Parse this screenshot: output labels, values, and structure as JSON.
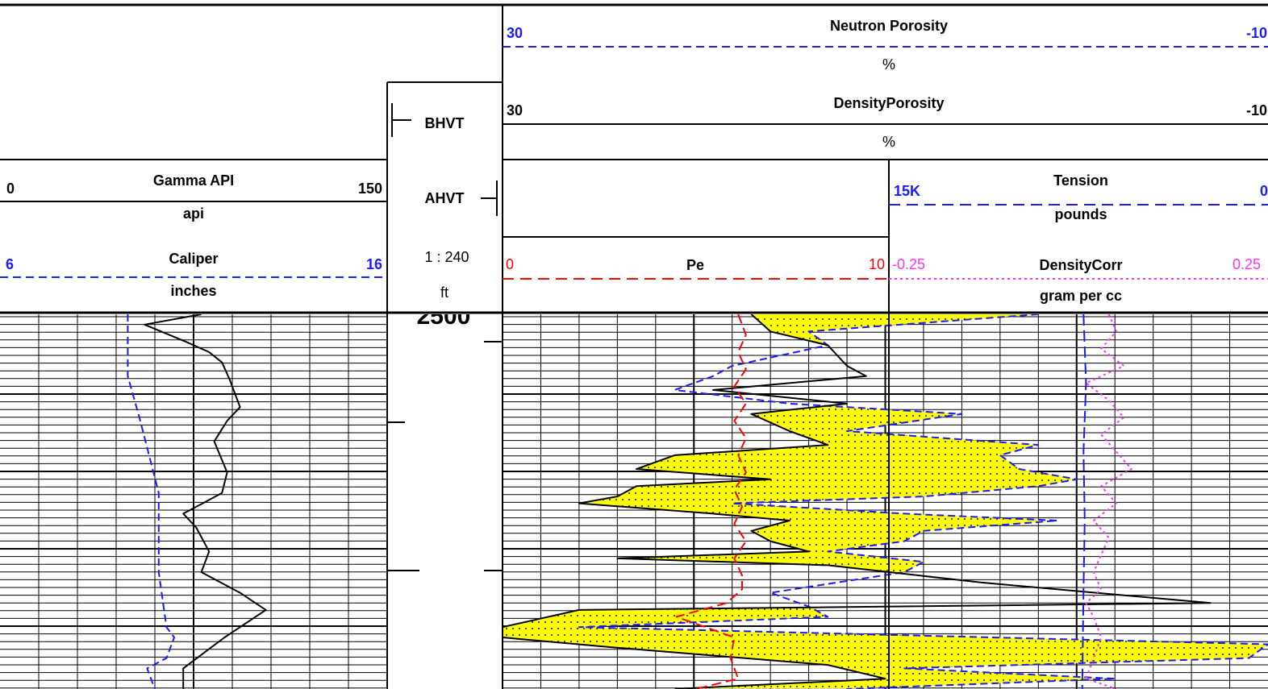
{
  "chart_data": {
    "type": "line",
    "title": "",
    "depth_axis": {
      "label_start": "2500",
      "scale": "1 : 240",
      "unit": "ft",
      "grid": true
    },
    "header": {
      "gamma": {
        "name": "Gamma API",
        "unit": "api",
        "min": "0",
        "max": "150",
        "color": "#000000"
      },
      "caliper": {
        "name": "Caliper",
        "unit": "inches",
        "min": "6",
        "max": "16",
        "color": "#1a1aff"
      },
      "bhvt": "BHVT",
      "ahvt": "AHVT",
      "neutron": {
        "name": "Neutron Porosity",
        "unit": "%",
        "min": "30",
        "max": "-10",
        "color": "#1a1aff"
      },
      "density_porosity": {
        "name": "DensityPorosity",
        "unit": "%",
        "min": "30",
        "max": "-10",
        "color": "#000000"
      },
      "tension": {
        "name": "Tension",
        "unit": "pounds",
        "min": "15K",
        "max": "0",
        "color": "#1a1aff"
      },
      "pe": {
        "name": "Pe",
        "min": "0",
        "max": "10",
        "color": "#ff0000"
      },
      "density_corr": {
        "name": "DensityCorr",
        "unit": "gram per cc",
        "min": "-0.25",
        "max": "0.25",
        "color": "#ff33ff"
      }
    },
    "crossover_fill_color": "#ffff00",
    "series": [
      {
        "key": "gamma",
        "values": [
          [
            0,
            78
          ],
          [
            15,
            56
          ],
          [
            40,
            72
          ],
          [
            55,
            81
          ],
          [
            70,
            86
          ],
          [
            95,
            89
          ],
          [
            135,
            93
          ],
          [
            155,
            88
          ],
          [
            185,
            83
          ],
          [
            230,
            88
          ],
          [
            260,
            86
          ],
          [
            290,
            71
          ],
          [
            310,
            76
          ],
          [
            345,
            81
          ],
          [
            375,
            78
          ],
          [
            405,
            93
          ],
          [
            430,
            103
          ],
          [
            470,
            87
          ],
          [
            515,
            71
          ],
          [
            545,
            71
          ]
        ]
      },
      {
        "key": "caliper",
        "values": [
          [
            0,
            9.3
          ],
          [
            90,
            9.3
          ],
          [
            150,
            9.6
          ],
          [
            260,
            10.1
          ],
          [
            375,
            10.1
          ],
          [
            455,
            10.3
          ],
          [
            470,
            10.5
          ],
          [
            500,
            10.3
          ],
          [
            515,
            9.8
          ],
          [
            545,
            10.0
          ]
        ]
      },
      {
        "key": "neutron",
        "values": [
          [
            0,
            2
          ],
          [
            25,
            14
          ],
          [
            45,
            13
          ],
          [
            75,
            18
          ],
          [
            90,
            19
          ],
          [
            110,
            21
          ],
          [
            130,
            15
          ],
          [
            145,
            6
          ],
          [
            170,
            12
          ],
          [
            190,
            2
          ],
          [
            205,
            4
          ],
          [
            225,
            3
          ],
          [
            240,
            0
          ],
          [
            250,
            2
          ],
          [
            265,
            8
          ],
          [
            275,
            18
          ],
          [
            290,
            9
          ],
          [
            300,
            1
          ],
          [
            315,
            8
          ],
          [
            330,
            9
          ],
          [
            345,
            13
          ],
          [
            360,
            8
          ],
          [
            375,
            9
          ],
          [
            405,
            16
          ],
          [
            425,
            14
          ],
          [
            440,
            13
          ],
          [
            455,
            26
          ],
          [
            480,
            -10
          ],
          [
            500,
            -9
          ],
          [
            515,
            9
          ],
          [
            530,
            -2
          ],
          [
            545,
            12
          ]
        ]
      },
      {
        "key": "density_porosity",
        "values": [
          [
            0,
            17
          ],
          [
            25,
            16
          ],
          [
            45,
            13
          ],
          [
            75,
            12
          ],
          [
            90,
            11
          ],
          [
            110,
            19
          ],
          [
            130,
            12
          ],
          [
            145,
            17
          ],
          [
            170,
            15
          ],
          [
            190,
            13
          ],
          [
            205,
            21
          ],
          [
            225,
            23
          ],
          [
            240,
            16
          ],
          [
            250,
            23
          ],
          [
            265,
            24
          ],
          [
            275,
            26
          ],
          [
            290,
            19
          ],
          [
            300,
            15
          ],
          [
            315,
            17
          ],
          [
            330,
            16
          ],
          [
            345,
            14
          ],
          [
            355,
            24
          ],
          [
            365,
            13
          ],
          [
            390,
            5
          ],
          [
            420,
            -7
          ],
          [
            430,
            26
          ],
          [
            455,
            30
          ],
          [
            470,
            30
          ],
          [
            485,
            24
          ],
          [
            510,
            13
          ],
          [
            530,
            10
          ],
          [
            545,
            21
          ]
        ]
      },
      {
        "key": "pe",
        "values": [
          [
            0,
            6.1
          ],
          [
            30,
            6.3
          ],
          [
            55,
            6.1
          ],
          [
            80,
            6.3
          ],
          [
            105,
            6.0
          ],
          [
            130,
            6.3
          ],
          [
            155,
            6.0
          ],
          [
            180,
            6.3
          ],
          [
            205,
            6.1
          ],
          [
            230,
            6.3
          ],
          [
            255,
            6.0
          ],
          [
            280,
            6.2
          ],
          [
            305,
            6.0
          ],
          [
            330,
            6.3
          ],
          [
            355,
            6.0
          ],
          [
            380,
            6.2
          ],
          [
            400,
            6.2
          ],
          [
            420,
            5.8
          ],
          [
            440,
            4.5
          ],
          [
            470,
            6.0
          ],
          [
            500,
            5.9
          ],
          [
            530,
            6.1
          ],
          [
            545,
            5.0
          ]
        ]
      },
      {
        "key": "density_corr",
        "values": [
          [
            0,
            0.04
          ],
          [
            25,
            0.05
          ],
          [
            50,
            0.03
          ],
          [
            75,
            0.06
          ],
          [
            100,
            0.01
          ],
          [
            125,
            0.04
          ],
          [
            150,
            0.06
          ],
          [
            175,
            0.03
          ],
          [
            200,
            0.05
          ],
          [
            225,
            0.07
          ],
          [
            250,
            0.03
          ],
          [
            275,
            0.05
          ],
          [
            300,
            0.02
          ],
          [
            325,
            0.04
          ],
          [
            350,
            0.03
          ],
          [
            375,
            0.02
          ],
          [
            400,
            0.03
          ],
          [
            420,
            0.01
          ],
          [
            440,
            0.02
          ],
          [
            470,
            0.03
          ],
          [
            500,
            0.02
          ],
          [
            530,
            0.01
          ],
          [
            545,
            0.05
          ]
        ]
      },
      {
        "key": "tension",
        "values": [
          [
            0,
            7300
          ],
          [
            100,
            7200
          ],
          [
            200,
            7300
          ],
          [
            300,
            7250
          ],
          [
            400,
            7300
          ],
          [
            545,
            7350
          ]
        ]
      }
    ]
  }
}
